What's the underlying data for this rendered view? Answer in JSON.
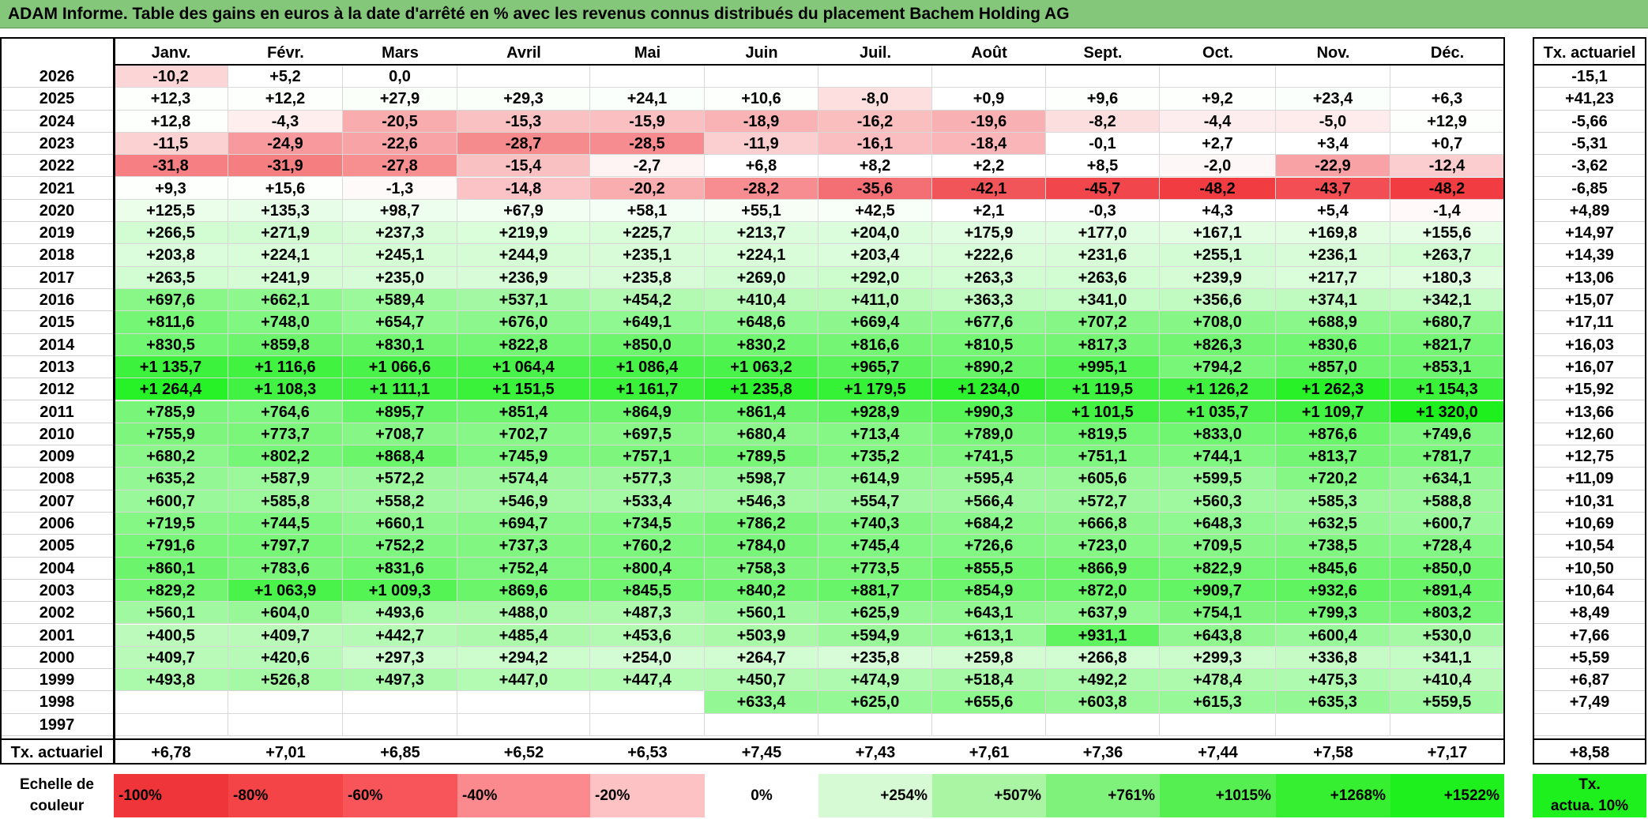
{
  "title": "ADAM Informe. Table des gains en euros à la date d'arrêté en % avec les revenus connus distribués du placement Bachem Holding AG",
  "colors": {
    "title_bg": "#84c67a",
    "neg_max": "#f0353a",
    "pos_max": "#1ef01e",
    "neutral": "#ffffff"
  },
  "chart_data": {
    "type": "table",
    "months": [
      "Janv.",
      "Févr.",
      "Mars",
      "Avril",
      "Mai",
      "Juin",
      "Juil.",
      "Août",
      "Sept.",
      "Oct.",
      "Nov.",
      "Déc."
    ],
    "annual_header": "Tx. actuariel",
    "rows": [
      {
        "year": "2026",
        "values": [
          "-10,2",
          "+5,2",
          "0,0",
          "",
          "",
          "",
          "",
          "",
          "",
          "",
          "",
          ""
        ],
        "annual": "-15,1"
      },
      {
        "year": "2025",
        "values": [
          "+12,3",
          "+12,2",
          "+27,9",
          "+29,3",
          "+24,1",
          "+10,6",
          "-8,0",
          "+0,9",
          "+9,6",
          "+9,2",
          "+23,4",
          "+6,3"
        ],
        "annual": "+41,23"
      },
      {
        "year": "2024",
        "values": [
          "+12,8",
          "-4,3",
          "-20,5",
          "-15,3",
          "-15,9",
          "-18,9",
          "-16,2",
          "-19,6",
          "-8,2",
          "-4,4",
          "-5,0",
          "+12,9"
        ],
        "annual": "-5,66"
      },
      {
        "year": "2023",
        "values": [
          "-11,5",
          "-24,9",
          "-22,6",
          "-28,7",
          "-28,5",
          "-11,9",
          "-16,1",
          "-18,4",
          "-0,1",
          "+2,7",
          "+3,4",
          "+0,7"
        ],
        "annual": "-5,31"
      },
      {
        "year": "2022",
        "values": [
          "-31,8",
          "-31,9",
          "-27,8",
          "-15,4",
          "-2,7",
          "+6,8",
          "+8,2",
          "+2,2",
          "+8,5",
          "-2,0",
          "-22,9",
          "-12,4"
        ],
        "annual": "-3,62"
      },
      {
        "year": "2021",
        "values": [
          "+9,3",
          "+15,6",
          "-1,3",
          "-14,8",
          "-20,2",
          "-28,2",
          "-35,6",
          "-42,1",
          "-45,7",
          "-48,2",
          "-43,7",
          "-48,2"
        ],
        "annual": "-6,85"
      },
      {
        "year": "2020",
        "values": [
          "+125,5",
          "+135,3",
          "+98,7",
          "+67,9",
          "+58,1",
          "+55,1",
          "+42,5",
          "+2,1",
          "-0,3",
          "+4,3",
          "+5,4",
          "-1,4"
        ],
        "annual": "+4,89"
      },
      {
        "year": "2019",
        "values": [
          "+266,5",
          "+271,9",
          "+237,3",
          "+219,9",
          "+225,7",
          "+213,7",
          "+204,0",
          "+175,9",
          "+177,0",
          "+167,1",
          "+169,8",
          "+155,6"
        ],
        "annual": "+14,97"
      },
      {
        "year": "2018",
        "values": [
          "+203,8",
          "+224,1",
          "+245,1",
          "+244,9",
          "+235,1",
          "+224,1",
          "+203,4",
          "+222,6",
          "+231,6",
          "+255,1",
          "+236,1",
          "+263,7"
        ],
        "annual": "+14,39"
      },
      {
        "year": "2017",
        "values": [
          "+263,5",
          "+241,9",
          "+235,0",
          "+236,9",
          "+235,8",
          "+269,0",
          "+292,0",
          "+263,3",
          "+263,6",
          "+239,9",
          "+217,7",
          "+180,3"
        ],
        "annual": "+13,06"
      },
      {
        "year": "2016",
        "values": [
          "+697,6",
          "+662,1",
          "+589,4",
          "+537,1",
          "+454,2",
          "+410,4",
          "+411,0",
          "+363,3",
          "+341,0",
          "+356,6",
          "+374,1",
          "+342,1"
        ],
        "annual": "+15,07"
      },
      {
        "year": "2015",
        "values": [
          "+811,6",
          "+748,0",
          "+654,7",
          "+676,0",
          "+649,1",
          "+648,6",
          "+669,4",
          "+677,6",
          "+707,2",
          "+708,0",
          "+688,9",
          "+680,7"
        ],
        "annual": "+17,11"
      },
      {
        "year": "2014",
        "values": [
          "+830,5",
          "+859,8",
          "+830,1",
          "+822,8",
          "+850,0",
          "+830,2",
          "+816,6",
          "+810,5",
          "+817,3",
          "+826,3",
          "+830,6",
          "+821,7"
        ],
        "annual": "+16,03"
      },
      {
        "year": "2013",
        "values": [
          "+1 135,7",
          "+1 116,6",
          "+1 066,6",
          "+1 064,4",
          "+1 086,4",
          "+1 063,2",
          "+965,7",
          "+890,2",
          "+995,1",
          "+794,2",
          "+857,0",
          "+853,1"
        ],
        "annual": "+16,07"
      },
      {
        "year": "2012",
        "values": [
          "+1 264,4",
          "+1 108,3",
          "+1 111,1",
          "+1 151,5",
          "+1 161,7",
          "+1 235,8",
          "+1 179,5",
          "+1 234,0",
          "+1 119,5",
          "+1 126,2",
          "+1 262,3",
          "+1 154,3"
        ],
        "annual": "+15,92"
      },
      {
        "year": "2011",
        "values": [
          "+785,9",
          "+764,6",
          "+895,7",
          "+851,4",
          "+864,9",
          "+861,4",
          "+928,9",
          "+990,3",
          "+1 101,5",
          "+1 035,7",
          "+1 109,7",
          "+1 320,0"
        ],
        "annual": "+13,66"
      },
      {
        "year": "2010",
        "values": [
          "+755,9",
          "+773,7",
          "+708,7",
          "+702,7",
          "+697,5",
          "+680,4",
          "+713,4",
          "+789,0",
          "+819,5",
          "+833,0",
          "+876,6",
          "+749,6"
        ],
        "annual": "+12,60"
      },
      {
        "year": "2009",
        "values": [
          "+680,2",
          "+802,2",
          "+868,4",
          "+745,9",
          "+757,1",
          "+789,5",
          "+735,2",
          "+741,5",
          "+751,1",
          "+744,1",
          "+813,7",
          "+781,7"
        ],
        "annual": "+12,75"
      },
      {
        "year": "2008",
        "values": [
          "+635,2",
          "+587,9",
          "+572,2",
          "+574,4",
          "+577,3",
          "+598,7",
          "+614,9",
          "+595,4",
          "+605,6",
          "+599,5",
          "+720,2",
          "+634,1"
        ],
        "annual": "+11,09"
      },
      {
        "year": "2007",
        "values": [
          "+600,7",
          "+585,8",
          "+558,2",
          "+546,9",
          "+533,4",
          "+546,3",
          "+554,7",
          "+566,4",
          "+572,7",
          "+560,3",
          "+585,3",
          "+588,8"
        ],
        "annual": "+10,31"
      },
      {
        "year": "2006",
        "values": [
          "+719,5",
          "+744,5",
          "+660,1",
          "+694,7",
          "+734,5",
          "+786,2",
          "+740,3",
          "+684,2",
          "+666,8",
          "+648,3",
          "+632,5",
          "+600,7"
        ],
        "annual": "+10,69"
      },
      {
        "year": "2005",
        "values": [
          "+791,6",
          "+797,7",
          "+752,2",
          "+737,3",
          "+760,2",
          "+784,0",
          "+745,4",
          "+726,6",
          "+723,0",
          "+709,5",
          "+738,5",
          "+728,4"
        ],
        "annual": "+10,54"
      },
      {
        "year": "2004",
        "values": [
          "+860,1",
          "+783,6",
          "+831,6",
          "+752,4",
          "+800,4",
          "+758,3",
          "+773,5",
          "+855,5",
          "+866,9",
          "+822,9",
          "+845,6",
          "+850,0"
        ],
        "annual": "+10,50"
      },
      {
        "year": "2003",
        "values": [
          "+829,2",
          "+1 063,9",
          "+1 009,3",
          "+869,6",
          "+845,5",
          "+840,2",
          "+881,7",
          "+854,9",
          "+872,0",
          "+909,7",
          "+932,6",
          "+891,4"
        ],
        "annual": "+10,64"
      },
      {
        "year": "2002",
        "values": [
          "+560,1",
          "+604,0",
          "+493,6",
          "+488,0",
          "+487,3",
          "+560,1",
          "+625,9",
          "+643,1",
          "+637,9",
          "+754,1",
          "+799,3",
          "+803,2"
        ],
        "annual": "+8,49"
      },
      {
        "year": "2001",
        "values": [
          "+400,5",
          "+409,7",
          "+442,7",
          "+485,4",
          "+453,6",
          "+503,9",
          "+594,9",
          "+613,1",
          "+931,1",
          "+643,8",
          "+600,4",
          "+530,0"
        ],
        "annual": "+7,66"
      },
      {
        "year": "2000",
        "values": [
          "+409,7",
          "+420,6",
          "+297,3",
          "+294,2",
          "+254,0",
          "+264,7",
          "+235,8",
          "+259,8",
          "+266,8",
          "+299,3",
          "+336,8",
          "+341,1"
        ],
        "annual": "+5,59"
      },
      {
        "year": "1999",
        "values": [
          "+493,8",
          "+526,8",
          "+497,3",
          "+447,0",
          "+447,4",
          "+450,7",
          "+474,9",
          "+518,4",
          "+492,2",
          "+478,4",
          "+475,3",
          "+410,4"
        ],
        "annual": "+6,87"
      },
      {
        "year": "1998",
        "values": [
          "",
          "",
          "",
          "",
          "",
          "+633,4",
          "+625,0",
          "+655,6",
          "+603,8",
          "+615,3",
          "+635,3",
          "+559,5"
        ],
        "annual": "+7,49"
      },
      {
        "year": "1997",
        "values": [
          "",
          "",
          "",
          "",
          "",
          "",
          "",
          "",
          "",
          "",
          "",
          ""
        ],
        "annual": ""
      }
    ],
    "totals": {
      "label": "Tx. actuariel",
      "values": [
        "+6,78",
        "+7,01",
        "+6,85",
        "+6,52",
        "+6,53",
        "+7,45",
        "+7,43",
        "+7,61",
        "+7,36",
        "+7,44",
        "+7,58",
        "+7,17"
      ],
      "annual": "+8,58"
    },
    "scale": {
      "label_line1": "Echelle de",
      "label_line2": "couleur",
      "items": [
        {
          "label": "-100%",
          "color": "#f0353a",
          "align": "left"
        },
        {
          "label": "-80%",
          "color": "#f44448",
          "align": "left"
        },
        {
          "label": "-60%",
          "color": "#f7555a",
          "align": "left"
        },
        {
          "label": "-40%",
          "color": "#fa8a8e",
          "align": "left"
        },
        {
          "label": "-20%",
          "color": "#fdc2c4",
          "align": "left"
        },
        {
          "label": "0%",
          "color": "#ffffff",
          "align": "center"
        },
        {
          "label": "+254%",
          "color": "#d6fad4",
          "align": "right"
        },
        {
          "label": "+507%",
          "color": "#a9f5a4",
          "align": "right"
        },
        {
          "label": "+761%",
          "color": "#7ef27a",
          "align": "right"
        },
        {
          "label": "+1015%",
          "color": "#55ef52",
          "align": "right"
        },
        {
          "label": "+1268%",
          "color": "#35ef30",
          "align": "right"
        },
        {
          "label": "+1522%",
          "color": "#1ef01e",
          "align": "right"
        }
      ],
      "annual_line1": "Tx.",
      "annual_line2": "actua. 10%",
      "annual_color": "#1ef01e"
    }
  }
}
